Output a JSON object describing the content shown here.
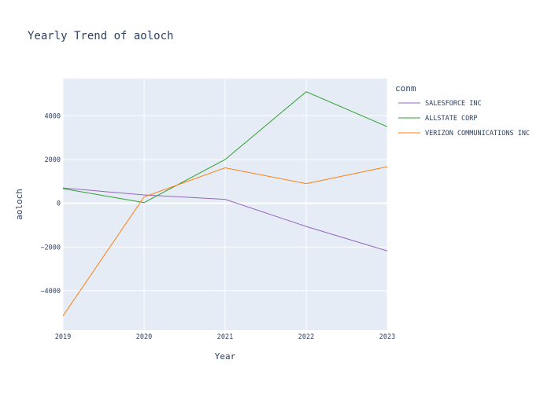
{
  "chart_data": {
    "type": "line",
    "title": "Yearly Trend of aoloch",
    "xlabel": "Year",
    "ylabel": "aoloch",
    "x": [
      2019,
      2020,
      2021,
      2022,
      2023
    ],
    "x_ticks": [
      "2019",
      "2020",
      "2021",
      "2022",
      "2023"
    ],
    "xlim": [
      2019,
      2023
    ],
    "ylim": [
      -5800,
      5700
    ],
    "y_ticks": [
      -4000,
      -2000,
      0,
      2000,
      4000
    ],
    "y_tick_labels": [
      "−4000",
      "−2000",
      "0",
      "2000",
      "4000"
    ],
    "grid": true,
    "legend_title": "conm",
    "legend_position": "top-right",
    "series": [
      {
        "name": "SALESFORCE INC",
        "color": "#9467bd",
        "values": [
          700,
          380,
          180,
          -1060,
          -2180
        ]
      },
      {
        "name": "ALLSTATE CORP",
        "color": "#2ca02c",
        "values": [
          670,
          30,
          2000,
          5100,
          3500
        ]
      },
      {
        "name": "VERIZON COMMUNICATIONS INC",
        "color": "#ff7f0e",
        "values": [
          -5150,
          290,
          1620,
          900,
          1670
        ]
      }
    ]
  }
}
